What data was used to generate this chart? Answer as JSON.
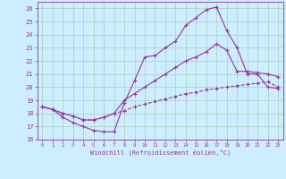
{
  "xlabel": "Windchill (Refroidissement éolien,°C)",
  "bg_color": "#cceeff",
  "grid_color": "#aaccbb",
  "line_color": "#993399",
  "xlim": [
    -0.5,
    23.5
  ],
  "ylim": [
    16,
    26.5
  ],
  "yticks": [
    16,
    17,
    18,
    19,
    20,
    21,
    22,
    23,
    24,
    25,
    26
  ],
  "xticks": [
    0,
    1,
    2,
    3,
    4,
    5,
    6,
    7,
    8,
    9,
    10,
    11,
    12,
    13,
    14,
    15,
    16,
    17,
    18,
    19,
    20,
    21,
    22,
    23
  ],
  "line1_x": [
    0,
    1,
    2,
    3,
    4,
    5,
    6,
    7,
    8,
    9,
    10,
    11,
    12,
    13,
    14,
    15,
    16,
    17,
    18,
    19,
    20,
    21,
    22,
    23
  ],
  "line1_y": [
    18.5,
    18.3,
    17.7,
    17.3,
    17.0,
    16.7,
    16.6,
    16.6,
    18.8,
    20.5,
    22.3,
    22.4,
    23.0,
    23.5,
    24.7,
    25.3,
    25.9,
    26.1,
    24.3,
    23.0,
    21.0,
    21.0,
    20.0,
    19.9
  ],
  "line2_x": [
    0,
    1,
    2,
    3,
    4,
    5,
    6,
    7,
    8,
    9,
    10,
    11,
    12,
    13,
    14,
    15,
    16,
    17,
    18,
    19,
    20,
    21,
    22,
    23
  ],
  "line2_y": [
    18.5,
    18.3,
    18.0,
    17.8,
    17.5,
    17.5,
    17.7,
    18.0,
    19.0,
    19.5,
    20.0,
    20.5,
    21.0,
    21.5,
    22.0,
    22.3,
    22.7,
    23.3,
    22.8,
    21.2,
    21.2,
    21.1,
    21.0,
    20.8
  ],
  "line3_x": [
    0,
    1,
    2,
    3,
    4,
    5,
    6,
    7,
    8,
    9,
    10,
    11,
    12,
    13,
    14,
    15,
    16,
    17,
    18,
    19,
    20,
    21,
    22,
    23
  ],
  "line3_y": [
    18.5,
    18.3,
    18.0,
    17.8,
    17.5,
    17.5,
    17.7,
    18.0,
    18.2,
    18.5,
    18.7,
    18.9,
    19.1,
    19.3,
    19.5,
    19.6,
    19.8,
    19.9,
    20.0,
    20.1,
    20.2,
    20.3,
    20.4,
    20.0
  ]
}
